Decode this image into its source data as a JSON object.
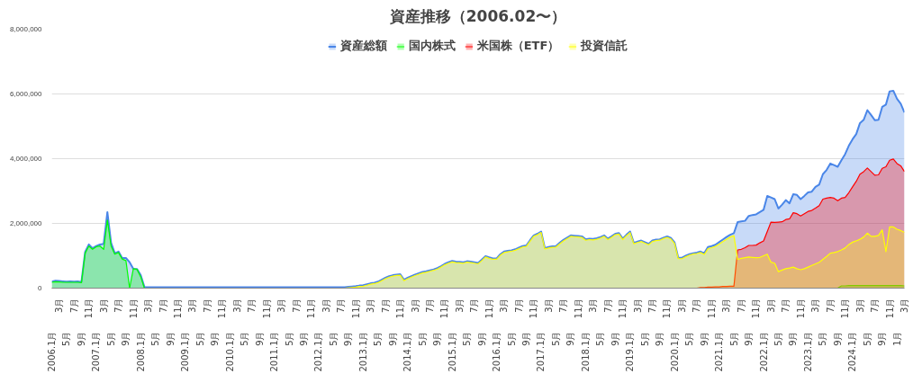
{
  "chart_data": {
    "type": "area",
    "title": "資産推移（2006.02〜）",
    "categories": [
      "2006.1月",
      null,
      "3月",
      null,
      "5月",
      null,
      "7月",
      null,
      "9月",
      null,
      "11月",
      null,
      "2007.1月",
      null,
      "3月",
      null,
      "5月",
      null,
      "7月",
      null,
      "9月",
      null,
      "11月",
      null,
      "2008.1月",
      null,
      "3月",
      null,
      "5月",
      null,
      "7月",
      null,
      "9月",
      null,
      "11月",
      null,
      "2009.1月",
      null,
      "3月",
      null,
      "5月",
      null,
      "7月",
      null,
      "9月",
      null,
      "11月",
      null,
      "2010.1月",
      null,
      "3月",
      null,
      "5月",
      null,
      "7月",
      null,
      "9月",
      null,
      "11月",
      null,
      "2011.1月",
      null,
      "3月",
      null,
      "5月",
      null,
      "7月",
      null,
      "9月",
      null,
      "11月",
      null,
      "2012.1月",
      null,
      "3月",
      null,
      "5月",
      null,
      "7月",
      null,
      "9月",
      null,
      "11月",
      null,
      "2013.1月",
      null,
      "3月",
      null,
      "5月",
      null,
      "7月",
      null,
      "9月",
      null,
      "11月",
      null,
      "2014.1月",
      null,
      "3月",
      null,
      "5月",
      null,
      "7月",
      null,
      "9月",
      null,
      "11月",
      null,
      "2015.1月",
      null,
      "3月",
      null,
      "5月",
      null,
      "7月",
      null,
      "9月",
      null,
      "11月",
      null,
      "2016.1月",
      null,
      "3月",
      null,
      "5月",
      null,
      "7月",
      null,
      "9月",
      null,
      "11月",
      null,
      "2017.1月",
      null,
      "3月",
      null,
      "5月",
      null,
      "7月",
      null,
      "9月",
      null,
      "11月",
      null,
      "2018.1月",
      null,
      "3月",
      null,
      "5月",
      null,
      "7月",
      null,
      "9月",
      null,
      "11月",
      null,
      "2019.1月",
      null,
      "3月",
      null,
      "5月",
      null,
      "7月",
      null,
      "9月",
      null,
      "11月",
      null,
      "2020.1月",
      null,
      "3月",
      null,
      "5月",
      null,
      "7月",
      null,
      "9月",
      null,
      "11月",
      null,
      "2021.1月",
      null,
      "3月",
      null,
      "5月",
      null,
      "7月",
      null,
      "9月",
      null,
      "11月",
      null,
      "2022.1月",
      null,
      "3月",
      null,
      "5月",
      null,
      "7月",
      null,
      "9月",
      null,
      "11月",
      null,
      "2023.1月",
      null,
      "3月",
      null,
      "5月",
      null,
      "7月",
      null,
      "9月",
      null,
      "11月",
      null,
      "2024.1月",
      null,
      "3月",
      null,
      "5月",
      null,
      "7月",
      null,
      "9月",
      null,
      "11月",
      null,
      "1月",
      null,
      "3月"
    ],
    "series": [
      {
        "name": "資産総額",
        "color": "#4a86e8",
        "values": [
          200000,
          230000,
          220000,
          210000,
          200000,
          210000,
          200000,
          210000,
          190000,
          1120000,
          1350000,
          1230000,
          1300000,
          1350000,
          1370000,
          2350000,
          1400000,
          1080000,
          1130000,
          930000,
          930000,
          800000,
          600000,
          590000,
          400000,
          30000,
          30000,
          30000,
          30000,
          30000,
          30000,
          30000,
          30000,
          30000,
          30000,
          30000,
          30000,
          30000,
          30000,
          30000,
          30000,
          30000,
          30000,
          30000,
          30000,
          30000,
          30000,
          30000,
          30000,
          30000,
          30000,
          30000,
          30000,
          30000,
          30000,
          30000,
          30000,
          30000,
          30000,
          30000,
          30000,
          30000,
          30000,
          30000,
          30000,
          30000,
          30000,
          30000,
          30000,
          30000,
          30000,
          30000,
          30000,
          30000,
          30000,
          30000,
          30000,
          30000,
          30000,
          30000,
          40000,
          50000,
          60000,
          80000,
          90000,
          120000,
          150000,
          170000,
          200000,
          260000,
          320000,
          370000,
          400000,
          420000,
          430000,
          260000,
          320000,
          370000,
          420000,
          460000,
          500000,
          520000,
          550000,
          580000,
          620000,
          680000,
          750000,
          800000,
          840000,
          820000,
          810000,
          800000,
          830000,
          820000,
          800000,
          780000,
          880000,
          990000,
          950000,
          920000,
          920000,
          1050000,
          1130000,
          1150000,
          1170000,
          1200000,
          1250000,
          1300000,
          1320000,
          1480000,
          1630000,
          1680000,
          1750000,
          1240000,
          1270000,
          1290000,
          1300000,
          1400000,
          1490000,
          1560000,
          1630000,
          1620000,
          1610000,
          1600000,
          1510000,
          1530000,
          1520000,
          1540000,
          1580000,
          1630000,
          1530000,
          1600000,
          1680000,
          1700000,
          1530000,
          1650000,
          1750000,
          1400000,
          1440000,
          1470000,
          1420000,
          1370000,
          1470000,
          1500000,
          1510000,
          1560000,
          1600000,
          1550000,
          1410000,
          940000,
          940000,
          1000000,
          1050000,
          1080000,
          1100000,
          1130000,
          1080000,
          1270000,
          1300000,
          1340000,
          1420000,
          1500000,
          1580000,
          1650000,
          1700000,
          2040000,
          2060000,
          2080000,
          2230000,
          2260000,
          2280000,
          2350000,
          2420000,
          2850000,
          2800000,
          2750000,
          2460000,
          2580000,
          2720000,
          2620000,
          2900000,
          2880000,
          2750000,
          2850000,
          2960000,
          2980000,
          3130000,
          3200000,
          3520000,
          3650000,
          3850000,
          3800000,
          3750000,
          3950000,
          4140000,
          4400000,
          4600000,
          4760000,
          5100000,
          5200000,
          5500000,
          5350000,
          5190000,
          5200000,
          5600000,
          5670000,
          6080000,
          6100000,
          5850000,
          5700000,
          5430000
        ]
      },
      {
        "name": "国内株式",
        "color": "#00ff00",
        "values": [
          180000,
          200000,
          190000,
          180000,
          180000,
          180000,
          180000,
          180000,
          170000,
          1080000,
          1300000,
          1200000,
          1280000,
          1300000,
          1200000,
          2100000,
          1300000,
          1050000,
          1100000,
          900000,
          850000,
          0,
          600000,
          580000,
          350000,
          0,
          0,
          0,
          0,
          0,
          0,
          0,
          0,
          0,
          0,
          0,
          0,
          0,
          0,
          0,
          0,
          0,
          0,
          0,
          0,
          0,
          0,
          0,
          0,
          0,
          0,
          0,
          0,
          0,
          0,
          0,
          0,
          0,
          0,
          0,
          0,
          0,
          0,
          0,
          0,
          0,
          0,
          0,
          0,
          0,
          0,
          0,
          0,
          0,
          0,
          0,
          0,
          0,
          0,
          0,
          0,
          0,
          0,
          0,
          0,
          0,
          0,
          0,
          0,
          0,
          0,
          0,
          0,
          0,
          0,
          0,
          0,
          0,
          0,
          0,
          0,
          0,
          0,
          0,
          0,
          0,
          0,
          0,
          0,
          0,
          0,
          0,
          0,
          0,
          0,
          0,
          0,
          0,
          0,
          0,
          0,
          0,
          0,
          0,
          0,
          0,
          0,
          0,
          0,
          0,
          0,
          0,
          0,
          0,
          0,
          0,
          0,
          0,
          0,
          0,
          0,
          0,
          0,
          0,
          0,
          0,
          0,
          0,
          0,
          0,
          0,
          0,
          0,
          0,
          0,
          0,
          0,
          0,
          0,
          0,
          0,
          0,
          0,
          0,
          0,
          0,
          0,
          0,
          0,
          0,
          0,
          0,
          0,
          0,
          0,
          0,
          0,
          0,
          0,
          0,
          0,
          0,
          0,
          0,
          0,
          0,
          0,
          0,
          0,
          0,
          0,
          0,
          0,
          0,
          0,
          0,
          0,
          0,
          0,
          0,
          0,
          0,
          0,
          0,
          0,
          0,
          0,
          0,
          0,
          0,
          0,
          0,
          0,
          70000,
          70000,
          80000,
          80000,
          80000,
          80000,
          80000,
          80000,
          80000,
          80000,
          80000,
          80000,
          80000,
          80000,
          80000,
          80000,
          80000,
          70000
        ]
      },
      {
        "name": "米国株（ETF）",
        "color": "#ff0000",
        "values": [
          0,
          0,
          0,
          0,
          0,
          0,
          0,
          0,
          0,
          0,
          0,
          0,
          0,
          0,
          0,
          0,
          0,
          0,
          0,
          0,
          0,
          0,
          0,
          0,
          0,
          0,
          0,
          0,
          0,
          0,
          0,
          0,
          0,
          0,
          0,
          0,
          0,
          0,
          0,
          0,
          0,
          0,
          0,
          0,
          0,
          0,
          0,
          0,
          0,
          0,
          0,
          0,
          0,
          0,
          0,
          0,
          0,
          0,
          0,
          0,
          0,
          0,
          0,
          0,
          0,
          0,
          0,
          0,
          0,
          0,
          0,
          0,
          0,
          0,
          0,
          0,
          0,
          0,
          0,
          0,
          0,
          0,
          0,
          0,
          0,
          0,
          0,
          0,
          0,
          0,
          0,
          0,
          0,
          0,
          0,
          0,
          0,
          0,
          0,
          0,
          0,
          0,
          0,
          0,
          0,
          0,
          0,
          0,
          0,
          0,
          0,
          0,
          0,
          0,
          0,
          0,
          0,
          0,
          0,
          0,
          0,
          0,
          0,
          0,
          0,
          0,
          0,
          0,
          0,
          0,
          0,
          0,
          0,
          0,
          0,
          0,
          0,
          0,
          0,
          0,
          0,
          0,
          0,
          0,
          0,
          0,
          0,
          0,
          0,
          0,
          0,
          0,
          0,
          0,
          0,
          0,
          0,
          0,
          0,
          0,
          0,
          0,
          0,
          0,
          0,
          0,
          0,
          0,
          0,
          0,
          0,
          0,
          0,
          0,
          0,
          20000,
          20000,
          30000,
          30000,
          40000,
          40000,
          50000,
          50000,
          60000,
          60000,
          1180000,
          1200000,
          1250000,
          1320000,
          1320000,
          1330000,
          1400000,
          1460000,
          1750000,
          2040000,
          2030000,
          2040000,
          2050000,
          2120000,
          2140000,
          2330000,
          2300000,
          2230000,
          2300000,
          2370000,
          2400000,
          2470000,
          2550000,
          2750000,
          2780000,
          2800000,
          2780000,
          2700000,
          2780000,
          2800000,
          2950000,
          3130000,
          3300000,
          3520000,
          3600000,
          3710000,
          3600000,
          3490000,
          3500000,
          3700000,
          3750000,
          3950000,
          3990000,
          3850000,
          3780000,
          3600000
        ]
      },
      {
        "name": "投資信託",
        "color": "#ffff00",
        "values": [
          0,
          0,
          0,
          0,
          0,
          0,
          0,
          0,
          0,
          0,
          0,
          0,
          0,
          0,
          0,
          0,
          0,
          0,
          0,
          0,
          0,
          0,
          0,
          0,
          0,
          0,
          0,
          0,
          0,
          0,
          0,
          0,
          0,
          0,
          0,
          0,
          0,
          0,
          0,
          0,
          0,
          0,
          0,
          0,
          0,
          0,
          0,
          0,
          0,
          0,
          0,
          0,
          0,
          0,
          0,
          0,
          0,
          0,
          0,
          0,
          0,
          0,
          0,
          0,
          0,
          0,
          0,
          0,
          0,
          0,
          0,
          0,
          0,
          0,
          0,
          0,
          0,
          0,
          0,
          0,
          10000,
          20000,
          30000,
          50000,
          60000,
          90000,
          120000,
          140000,
          170000,
          230000,
          290000,
          340000,
          370000,
          390000,
          400000,
          230000,
          290000,
          340000,
          390000,
          430000,
          470000,
          490000,
          520000,
          550000,
          590000,
          650000,
          720000,
          770000,
          810000,
          790000,
          780000,
          770000,
          800000,
          790000,
          770000,
          750000,
          850000,
          960000,
          920000,
          890000,
          890000,
          1020000,
          1100000,
          1120000,
          1140000,
          1170000,
          1220000,
          1270000,
          1290000,
          1450000,
          1600000,
          1650000,
          1720000,
          1210000,
          1240000,
          1260000,
          1270000,
          1370000,
          1460000,
          1530000,
          1600000,
          1590000,
          1580000,
          1570000,
          1480000,
          1500000,
          1490000,
          1510000,
          1550000,
          1600000,
          1500000,
          1570000,
          1650000,
          1670000,
          1500000,
          1620000,
          1720000,
          1370000,
          1410000,
          1440000,
          1390000,
          1340000,
          1440000,
          1470000,
          1480000,
          1530000,
          1570000,
          1520000,
          1380000,
          910000,
          910000,
          970000,
          1020000,
          1050000,
          1070000,
          1100000,
          1040000,
          1220000,
          1250000,
          1290000,
          1360000,
          1440000,
          1510000,
          1580000,
          1620000,
          890000,
          920000,
          940000,
          960000,
          950000,
          940000,
          950000,
          1000000,
          1050000,
          800000,
          770000,
          510000,
          560000,
          600000,
          620000,
          650000,
          600000,
          570000,
          600000,
          650000,
          700000,
          750000,
          800000,
          890000,
          980000,
          1080000,
          1100000,
          1130000,
          1180000,
          1240000,
          1350000,
          1420000,
          1460000,
          1510000,
          1580000,
          1700000,
          1600000,
          1600000,
          1630000,
          1800000,
          1130000,
          1890000,
          1890000,
          1820000,
          1780000,
          1720000
        ]
      }
    ],
    "ylim": [
      0,
      8000000
    ],
    "yticks": [
      {
        "value": 0,
        "label": "0"
      },
      {
        "value": 2000000,
        "label": "2,000,000"
      },
      {
        "value": 4000000,
        "label": "4,000,000"
      },
      {
        "value": 6000000,
        "label": "6,000,000"
      },
      {
        "value": 8000000,
        "label": "8,000,000"
      }
    ],
    "grid": "y",
    "legend": "top"
  }
}
